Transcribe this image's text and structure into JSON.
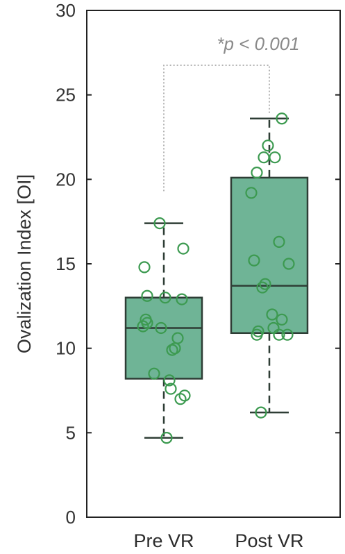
{
  "chart_data": {
    "type": "box",
    "ylabel": "Ovalization Index [OI]",
    "ylim": [
      0,
      30
    ],
    "yticks": [
      0,
      5,
      10,
      15,
      20,
      25,
      30
    ],
    "categories": [
      "Pre VR",
      "Post VR"
    ],
    "boxes": [
      {
        "category": "Pre VR",
        "whisker_low": 4.7,
        "q1": 8.2,
        "median": 11.2,
        "q3": 13.0,
        "whisker_high": 17.4,
        "points": [
          17.4,
          15.9,
          14.8,
          13.1,
          13.0,
          12.9,
          11.7,
          11.5,
          11.3,
          11.2,
          10.6,
          10.0,
          9.9,
          8.5,
          8.1,
          7.6,
          7.2,
          7.0,
          4.7
        ]
      },
      {
        "category": "Post VR",
        "whisker_low": 6.2,
        "q1": 10.9,
        "median": 13.7,
        "q3": 20.1,
        "whisker_high": 23.6,
        "points": [
          23.6,
          22.0,
          21.3,
          21.3,
          20.4,
          19.2,
          16.3,
          15.2,
          15.0,
          13.8,
          13.6,
          12.0,
          11.7,
          11.2,
          11.0,
          10.8,
          10.8,
          10.8,
          6.2
        ]
      }
    ],
    "colors": {
      "box_fill": "#6fb496",
      "box_edge": "#2e3d35",
      "points": "#3c9a50",
      "whisker": "#2e3d35",
      "annotation": "#8a8a8a"
    },
    "annotation": {
      "text": "*p < 0.001",
      "between": [
        "Pre VR",
        "Post VR"
      ]
    },
    "grid": false,
    "legend": "none"
  }
}
